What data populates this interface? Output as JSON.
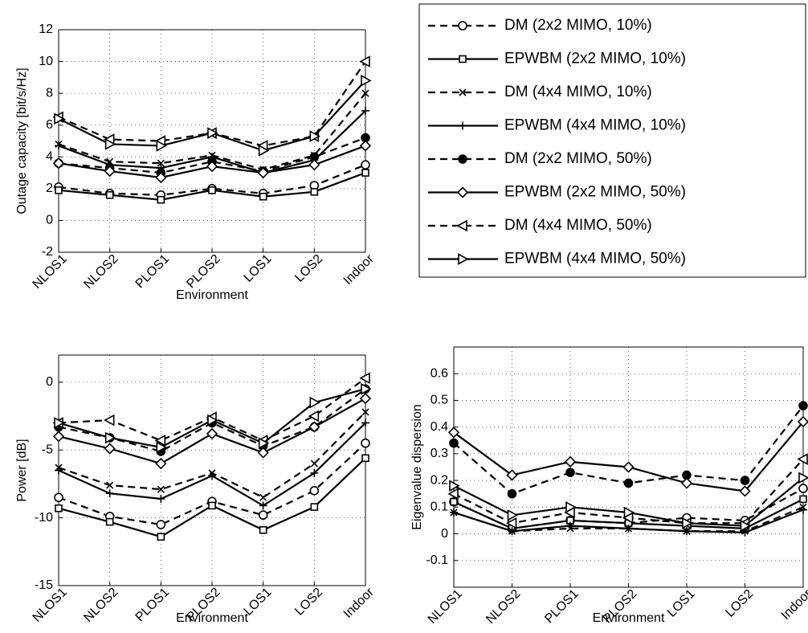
{
  "chart_data": [
    {
      "type": "line",
      "ylabel": "Outage capacity [bit/s/Hz]",
      "xlabel": "Environment",
      "categories": [
        "NLOS1",
        "NLOS2",
        "PLOS1",
        "PLOS2",
        "LOS1",
        "LOS2",
        "Indoor"
      ],
      "ylim": [
        -2,
        12
      ],
      "yticks": [
        -2,
        0,
        2,
        4,
        6,
        8,
        10,
        12
      ],
      "grid": true,
      "series": [
        {
          "name": "DM (2x2 MIMO, 10%)",
          "color": "#000000",
          "dash": true,
          "marker": "circle",
          "values": [
            2.1,
            1.7,
            1.6,
            2.0,
            1.7,
            2.2,
            3.5
          ]
        },
        {
          "name": "EPWBM (2x2 MIMO, 10%)",
          "color": "#000000",
          "dash": false,
          "marker": "square",
          "values": [
            1.9,
            1.6,
            1.3,
            1.9,
            1.5,
            1.8,
            3.0
          ]
        },
        {
          "name": "DM (4x4 MIMO, 10%)",
          "color": "#000000",
          "dash": true,
          "marker": "x",
          "values": [
            4.8,
            3.7,
            3.6,
            4.1,
            3.2,
            4.1,
            8.0
          ]
        },
        {
          "name": "EPWBM (4x4 MIMO, 10%)",
          "color": "#000000",
          "dash": false,
          "marker": "plus",
          "values": [
            4.7,
            3.5,
            3.3,
            4.0,
            3.0,
            3.8,
            6.9
          ]
        },
        {
          "name": "DM (2x2 MIMO, 50%)",
          "color": "#000000",
          "dash": true,
          "marker": "dot",
          "values": [
            3.6,
            3.3,
            3.0,
            3.7,
            3.1,
            4.0,
            5.2
          ]
        },
        {
          "name": "EPWBM (2x2 MIMO, 50%)",
          "color": "#000000",
          "dash": false,
          "marker": "diamond",
          "values": [
            3.6,
            3.1,
            2.7,
            3.4,
            3.0,
            3.5,
            4.7
          ]
        },
        {
          "name": "DM (4x4 MIMO, 50%)",
          "color": "#000000",
          "dash": true,
          "marker": "tri-left",
          "values": [
            6.5,
            5.1,
            5.0,
            5.5,
            4.7,
            5.3,
            10.0
          ]
        },
        {
          "name": "EPWBM (4x4 MIMO, 50%)",
          "color": "#000000",
          "dash": false,
          "marker": "tri-right",
          "values": [
            6.4,
            4.8,
            4.7,
            5.5,
            4.4,
            5.3,
            8.8
          ]
        }
      ]
    },
    {
      "type": "line",
      "ylabel": "Power [dB]",
      "xlabel": "Environment",
      "categories": [
        "NLOS1",
        "NLOS2",
        "PLOS1",
        "PLOS2",
        "LOS1",
        "LOS2",
        "Indoor"
      ],
      "ylim": [
        -15,
        2
      ],
      "yticks": [
        -15,
        -10,
        -5,
        0
      ],
      "grid": true,
      "series": [
        {
          "color": "#000000",
          "dash": true,
          "marker": "circle",
          "values": [
            -8.5,
            -9.9,
            -10.5,
            -8.8,
            -9.8,
            -8.0,
            -4.5
          ]
        },
        {
          "color": "#000000",
          "dash": false,
          "marker": "square",
          "values": [
            -9.3,
            -10.3,
            -11.4,
            -9.1,
            -10.9,
            -9.2,
            -5.6
          ]
        },
        {
          "color": "#000000",
          "dash": true,
          "marker": "x",
          "values": [
            -6.3,
            -7.6,
            -7.9,
            -6.7,
            -8.5,
            -6.0,
            -2.2
          ]
        },
        {
          "color": "#000000",
          "dash": false,
          "marker": "plus",
          "values": [
            -6.5,
            -8.2,
            -8.6,
            -6.9,
            -9.1,
            -6.7,
            -3.0
          ]
        },
        {
          "color": "#000000",
          "dash": true,
          "marker": "dot",
          "values": [
            -3.3,
            -4.1,
            -5.1,
            -3.0,
            -4.7,
            -3.3,
            -0.5
          ]
        },
        {
          "color": "#000000",
          "dash": false,
          "marker": "diamond",
          "values": [
            -4.0,
            -4.9,
            -6.0,
            -3.8,
            -5.2,
            -3.3,
            -1.2
          ]
        },
        {
          "color": "#000000",
          "dash": true,
          "marker": "tri-left",
          "values": [
            -3.0,
            -2.8,
            -4.3,
            -2.6,
            -4.3,
            -2.5,
            0.3
          ]
        },
        {
          "color": "#000000",
          "dash": false,
          "marker": "tri-right",
          "values": [
            -3.0,
            -4.1,
            -4.8,
            -2.8,
            -4.5,
            -1.5,
            -0.5
          ]
        }
      ]
    },
    {
      "type": "line",
      "ylabel": "Eigenvalue dispersion",
      "xlabel": "Environment",
      "categories": [
        "NLOS1",
        "NLOS2",
        "PLOS1",
        "PLOS2",
        "LOS1",
        "LOS2",
        "Indoor"
      ],
      "ylim": [
        -0.2,
        0.7
      ],
      "yticks": [
        -0.1,
        0,
        0.1,
        0.2,
        0.3,
        0.4,
        0.5,
        0.6
      ],
      "grid": true,
      "series": [
        {
          "color": "#000000",
          "dash": true,
          "marker": "circle",
          "values": [
            0.12,
            0.02,
            0.05,
            0.04,
            0.06,
            0.05,
            0.17
          ]
        },
        {
          "color": "#000000",
          "dash": false,
          "marker": "square",
          "values": [
            0.12,
            0.02,
            0.05,
            0.04,
            0.03,
            0.02,
            0.13
          ]
        },
        {
          "color": "#000000",
          "dash": true,
          "marker": "x",
          "values": [
            0.08,
            0.01,
            0.02,
            0.02,
            0.01,
            0.01,
            0.1
          ]
        },
        {
          "color": "#000000",
          "dash": false,
          "marker": "plus",
          "values": [
            0.08,
            0.01,
            0.03,
            0.02,
            0.01,
            0.005,
            0.09
          ]
        },
        {
          "color": "#000000",
          "dash": true,
          "marker": "dot",
          "values": [
            0.34,
            0.15,
            0.23,
            0.19,
            0.22,
            0.2,
            0.48
          ]
        },
        {
          "color": "#000000",
          "dash": false,
          "marker": "diamond",
          "values": [
            0.38,
            0.22,
            0.27,
            0.25,
            0.19,
            0.16,
            0.42
          ]
        },
        {
          "color": "#000000",
          "dash": true,
          "marker": "tri-left",
          "values": [
            0.15,
            0.04,
            0.08,
            0.06,
            0.04,
            0.04,
            0.28
          ]
        },
        {
          "color": "#000000",
          "dash": false,
          "marker": "tri-right",
          "values": [
            0.18,
            0.07,
            0.1,
            0.08,
            0.04,
            0.03,
            0.21
          ]
        }
      ]
    }
  ]
}
